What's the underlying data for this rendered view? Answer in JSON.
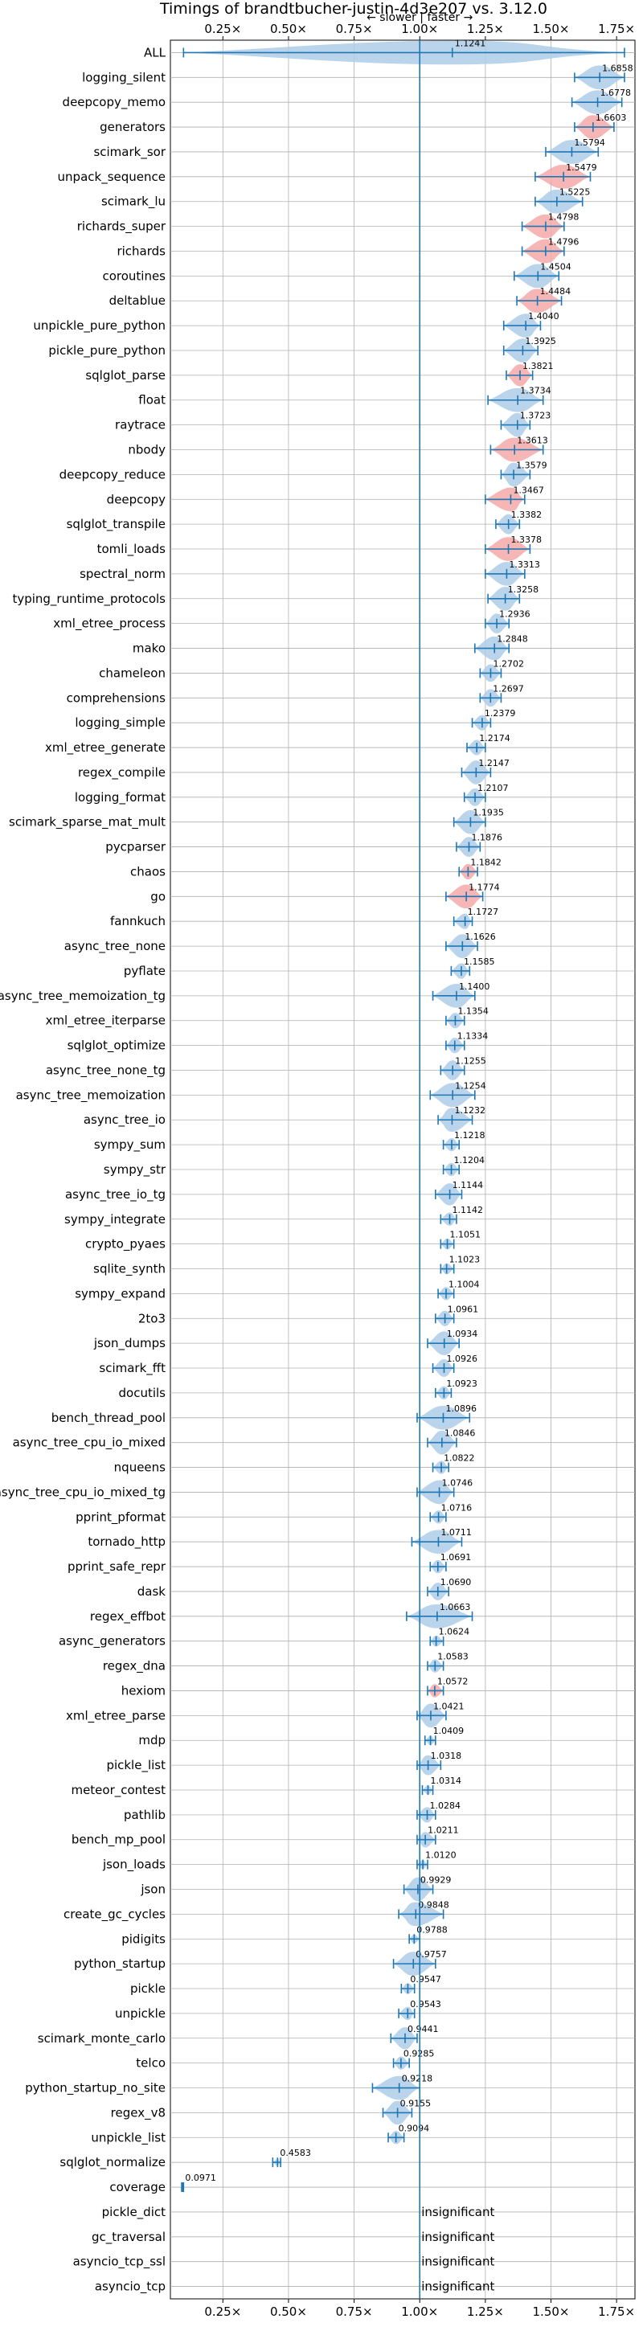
{
  "chart_data": {
    "type": "violin",
    "title": "Timings of brandtbucher-justin-4d3e207 vs. 3.12.0",
    "direction_annotation": "← slower | faster →",
    "xlim": [
      0.05,
      1.82
    ],
    "x_ticks": [
      0.25,
      0.5,
      0.75,
      1.0,
      1.25,
      1.5,
      1.75
    ],
    "x_tick_labels": [
      "0.25×",
      "0.50×",
      "0.75×",
      "1.00×",
      "1.25×",
      "1.50×",
      "1.75×"
    ],
    "reference_line": 1.0,
    "grid": true,
    "colors": {
      "faster": "#aecde8",
      "faster_highlight": "#f4a9a8",
      "line": "#1f77b4"
    },
    "insignificant_label": "insignificant",
    "benchmarks": [
      {
        "name": "ALL",
        "value": 1.1241,
        "label": "1.1241",
        "lo": 0.1,
        "hi": 1.78
      },
      {
        "name": "logging_silent",
        "value": 1.6858,
        "label": "1.6858",
        "lo": 1.59,
        "hi": 1.78
      },
      {
        "name": "deepcopy_memo",
        "value": 1.6778,
        "label": "1.6778",
        "lo": 1.58,
        "hi": 1.77
      },
      {
        "name": "generators",
        "value": 1.6603,
        "label": "1.6603",
        "lo": 1.59,
        "hi": 1.74,
        "highlight": true
      },
      {
        "name": "scimark_sor",
        "value": 1.5794,
        "label": "1.5794",
        "lo": 1.48,
        "hi": 1.68
      },
      {
        "name": "unpack_sequence",
        "value": 1.5479,
        "label": "1.5479",
        "lo": 1.44,
        "hi": 1.65,
        "highlight": true
      },
      {
        "name": "scimark_lu",
        "value": 1.5225,
        "label": "1.5225",
        "lo": 1.44,
        "hi": 1.62
      },
      {
        "name": "richards_super",
        "value": 1.4798,
        "label": "1.4798",
        "lo": 1.39,
        "hi": 1.55,
        "highlight": true
      },
      {
        "name": "richards",
        "value": 1.4796,
        "label": "1.4796",
        "lo": 1.39,
        "hi": 1.55,
        "highlight": true
      },
      {
        "name": "coroutines",
        "value": 1.4504,
        "label": "1.4504",
        "lo": 1.36,
        "hi": 1.53
      },
      {
        "name": "deltablue",
        "value": 1.4484,
        "label": "1.4484",
        "lo": 1.37,
        "hi": 1.54,
        "highlight": true
      },
      {
        "name": "unpickle_pure_python",
        "value": 1.404,
        "label": "1.4040",
        "lo": 1.32,
        "hi": 1.46
      },
      {
        "name": "pickle_pure_python",
        "value": 1.3925,
        "label": "1.3925",
        "lo": 1.32,
        "hi": 1.45
      },
      {
        "name": "sqlglot_parse",
        "value": 1.3821,
        "label": "1.3821",
        "lo": 1.33,
        "hi": 1.43,
        "highlight": true
      },
      {
        "name": "float",
        "value": 1.3734,
        "label": "1.3734",
        "lo": 1.26,
        "hi": 1.47
      },
      {
        "name": "raytrace",
        "value": 1.3723,
        "label": "1.3723",
        "lo": 1.31,
        "hi": 1.42
      },
      {
        "name": "nbody",
        "value": 1.3613,
        "label": "1.3613",
        "lo": 1.27,
        "hi": 1.47,
        "highlight": true
      },
      {
        "name": "deepcopy_reduce",
        "value": 1.3579,
        "label": "1.3579",
        "lo": 1.31,
        "hi": 1.42
      },
      {
        "name": "deepcopy",
        "value": 1.3467,
        "label": "1.3467",
        "lo": 1.25,
        "hi": 1.4,
        "highlight": true
      },
      {
        "name": "sqlglot_transpile",
        "value": 1.3382,
        "label": "1.3382",
        "lo": 1.29,
        "hi": 1.38
      },
      {
        "name": "tomli_loads",
        "value": 1.3378,
        "label": "1.3378",
        "lo": 1.25,
        "hi": 1.42,
        "highlight": true
      },
      {
        "name": "spectral_norm",
        "value": 1.3313,
        "label": "1.3313",
        "lo": 1.25,
        "hi": 1.4
      },
      {
        "name": "typing_runtime_protocols",
        "value": 1.3258,
        "label": "1.3258",
        "lo": 1.26,
        "hi": 1.38
      },
      {
        "name": "xml_etree_process",
        "value": 1.2936,
        "label": "1.2936",
        "lo": 1.25,
        "hi": 1.34
      },
      {
        "name": "mako",
        "value": 1.2848,
        "label": "1.2848",
        "lo": 1.21,
        "hi": 1.34
      },
      {
        "name": "chameleon",
        "value": 1.2702,
        "label": "1.2702",
        "lo": 1.23,
        "hi": 1.31
      },
      {
        "name": "comprehensions",
        "value": 1.2697,
        "label": "1.2697",
        "lo": 1.23,
        "hi": 1.31
      },
      {
        "name": "logging_simple",
        "value": 1.2379,
        "label": "1.2379",
        "lo": 1.2,
        "hi": 1.27
      },
      {
        "name": "xml_etree_generate",
        "value": 1.2174,
        "label": "1.2174",
        "lo": 1.18,
        "hi": 1.25
      },
      {
        "name": "regex_compile",
        "value": 1.2147,
        "label": "1.2147",
        "lo": 1.16,
        "hi": 1.27
      },
      {
        "name": "logging_format",
        "value": 1.2107,
        "label": "1.2107",
        "lo": 1.17,
        "hi": 1.25
      },
      {
        "name": "scimark_sparse_mat_mult",
        "value": 1.1935,
        "label": "1.1935",
        "lo": 1.13,
        "hi": 1.25
      },
      {
        "name": "pycparser",
        "value": 1.1876,
        "label": "1.1876",
        "lo": 1.14,
        "hi": 1.23
      },
      {
        "name": "chaos",
        "value": 1.1842,
        "label": "1.1842",
        "lo": 1.15,
        "hi": 1.22,
        "highlight": true
      },
      {
        "name": "go",
        "value": 1.1774,
        "label": "1.1774",
        "lo": 1.1,
        "hi": 1.24,
        "highlight": true
      },
      {
        "name": "fannkuch",
        "value": 1.1727,
        "label": "1.1727",
        "lo": 1.13,
        "hi": 1.2
      },
      {
        "name": "async_tree_none",
        "value": 1.1626,
        "label": "1.1626",
        "lo": 1.1,
        "hi": 1.22
      },
      {
        "name": "pyflate",
        "value": 1.1585,
        "label": "1.1585",
        "lo": 1.12,
        "hi": 1.19
      },
      {
        "name": "async_tree_memoization_tg",
        "value": 1.14,
        "label": "1.1400",
        "lo": 1.05,
        "hi": 1.21
      },
      {
        "name": "xml_etree_iterparse",
        "value": 1.1354,
        "label": "1.1354",
        "lo": 1.1,
        "hi": 1.17
      },
      {
        "name": "sqlglot_optimize",
        "value": 1.1334,
        "label": "1.1334",
        "lo": 1.1,
        "hi": 1.17
      },
      {
        "name": "async_tree_none_tg",
        "value": 1.1255,
        "label": "1.1255",
        "lo": 1.08,
        "hi": 1.17
      },
      {
        "name": "async_tree_memoization",
        "value": 1.1254,
        "label": "1.1254",
        "lo": 1.04,
        "hi": 1.21
      },
      {
        "name": "async_tree_io",
        "value": 1.1232,
        "label": "1.1232",
        "lo": 1.07,
        "hi": 1.2
      },
      {
        "name": "sympy_sum",
        "value": 1.1218,
        "label": "1.1218",
        "lo": 1.09,
        "hi": 1.15
      },
      {
        "name": "sympy_str",
        "value": 1.1204,
        "label": "1.1204",
        "lo": 1.09,
        "hi": 1.15
      },
      {
        "name": "async_tree_io_tg",
        "value": 1.1144,
        "label": "1.1144",
        "lo": 1.06,
        "hi": 1.16
      },
      {
        "name": "sympy_integrate",
        "value": 1.1142,
        "label": "1.1142",
        "lo": 1.08,
        "hi": 1.14
      },
      {
        "name": "crypto_pyaes",
        "value": 1.1051,
        "label": "1.1051",
        "lo": 1.08,
        "hi": 1.13
      },
      {
        "name": "sqlite_synth",
        "value": 1.1023,
        "label": "1.1023",
        "lo": 1.08,
        "hi": 1.13
      },
      {
        "name": "sympy_expand",
        "value": 1.1004,
        "label": "1.1004",
        "lo": 1.07,
        "hi": 1.13
      },
      {
        "name": "2to3",
        "value": 1.0961,
        "label": "1.0961",
        "lo": 1.06,
        "hi": 1.13
      },
      {
        "name": "json_dumps",
        "value": 1.0934,
        "label": "1.0934",
        "lo": 1.03,
        "hi": 1.15
      },
      {
        "name": "scimark_fft",
        "value": 1.0926,
        "label": "1.0926",
        "lo": 1.05,
        "hi": 1.13
      },
      {
        "name": "docutils",
        "value": 1.0923,
        "label": "1.0923",
        "lo": 1.06,
        "hi": 1.12
      },
      {
        "name": "bench_thread_pool",
        "value": 1.0896,
        "label": "1.0896",
        "lo": 0.99,
        "hi": 1.19
      },
      {
        "name": "async_tree_cpu_io_mixed",
        "value": 1.0846,
        "label": "1.0846",
        "lo": 1.03,
        "hi": 1.14
      },
      {
        "name": "nqueens",
        "value": 1.0822,
        "label": "1.0822",
        "lo": 1.05,
        "hi": 1.11
      },
      {
        "name": "async_tree_cpu_io_mixed_tg",
        "value": 1.0746,
        "label": "1.0746",
        "lo": 0.99,
        "hi": 1.13
      },
      {
        "name": "pprint_pformat",
        "value": 1.0716,
        "label": "1.0716",
        "lo": 1.04,
        "hi": 1.1
      },
      {
        "name": "tornado_http",
        "value": 1.0711,
        "label": "1.0711",
        "lo": 0.97,
        "hi": 1.16
      },
      {
        "name": "pprint_safe_repr",
        "value": 1.0691,
        "label": "1.0691",
        "lo": 1.04,
        "hi": 1.1
      },
      {
        "name": "dask",
        "value": 1.069,
        "label": "1.0690",
        "lo": 1.03,
        "hi": 1.11
      },
      {
        "name": "regex_effbot",
        "value": 1.0663,
        "label": "1.0663",
        "lo": 0.95,
        "hi": 1.2
      },
      {
        "name": "async_generators",
        "value": 1.0624,
        "label": "1.0624",
        "lo": 1.04,
        "hi": 1.09
      },
      {
        "name": "regex_dna",
        "value": 1.0583,
        "label": "1.0583",
        "lo": 1.03,
        "hi": 1.09
      },
      {
        "name": "hexiom",
        "value": 1.0572,
        "label": "1.0572",
        "lo": 1.03,
        "hi": 1.09,
        "highlight": true
      },
      {
        "name": "xml_etree_parse",
        "value": 1.0421,
        "label": "1.0421",
        "lo": 0.99,
        "hi": 1.1
      },
      {
        "name": "mdp",
        "value": 1.0409,
        "label": "1.0409",
        "lo": 1.02,
        "hi": 1.06
      },
      {
        "name": "pickle_list",
        "value": 1.0318,
        "label": "1.0318",
        "lo": 0.99,
        "hi": 1.08
      },
      {
        "name": "meteor_contest",
        "value": 1.0314,
        "label": "1.0314",
        "lo": 1.01,
        "hi": 1.05
      },
      {
        "name": "pathlib",
        "value": 1.0284,
        "label": "1.0284",
        "lo": 0.99,
        "hi": 1.06
      },
      {
        "name": "bench_mp_pool",
        "value": 1.0211,
        "label": "1.0211",
        "lo": 0.99,
        "hi": 1.06
      },
      {
        "name": "json_loads",
        "value": 1.012,
        "label": "1.0120",
        "lo": 0.99,
        "hi": 1.03
      },
      {
        "name": "json",
        "value": 0.9929,
        "label": "0.9929",
        "lo": 0.94,
        "hi": 1.05
      },
      {
        "name": "create_gc_cycles",
        "value": 0.9848,
        "label": "0.9848",
        "lo": 0.92,
        "hi": 1.09
      },
      {
        "name": "pidigits",
        "value": 0.9788,
        "label": "0.9788",
        "lo": 0.96,
        "hi": 1.0
      },
      {
        "name": "python_startup",
        "value": 0.9757,
        "label": "0.9757",
        "lo": 0.9,
        "hi": 1.06
      },
      {
        "name": "pickle",
        "value": 0.9547,
        "label": "0.9547",
        "lo": 0.93,
        "hi": 0.98
      },
      {
        "name": "unpickle",
        "value": 0.9543,
        "label": "0.9543",
        "lo": 0.92,
        "hi": 0.98
      },
      {
        "name": "scimark_monte_carlo",
        "value": 0.9441,
        "label": "0.9441",
        "lo": 0.89,
        "hi": 0.99
      },
      {
        "name": "telco",
        "value": 0.9285,
        "label": "0.9285",
        "lo": 0.9,
        "hi": 0.96
      },
      {
        "name": "python_startup_no_site",
        "value": 0.9218,
        "label": "0.9218",
        "lo": 0.82,
        "hi": 1.0
      },
      {
        "name": "regex_v8",
        "value": 0.9155,
        "label": "0.9155",
        "lo": 0.86,
        "hi": 0.97
      },
      {
        "name": "unpickle_list",
        "value": 0.9094,
        "label": "0.9094",
        "lo": 0.88,
        "hi": 0.94
      },
      {
        "name": "sqlglot_normalize",
        "value": 0.4583,
        "label": "0.4583",
        "lo": 0.44,
        "hi": 0.47
      },
      {
        "name": "coverage",
        "value": 0.0971,
        "label": "0.0971",
        "lo": 0.093,
        "hi": 0.1
      },
      {
        "name": "pickle_dict",
        "insignificant": true
      },
      {
        "name": "gc_traversal",
        "insignificant": true
      },
      {
        "name": "asyncio_tcp_ssl",
        "insignificant": true
      },
      {
        "name": "asyncio_tcp",
        "insignificant": true
      }
    ]
  }
}
